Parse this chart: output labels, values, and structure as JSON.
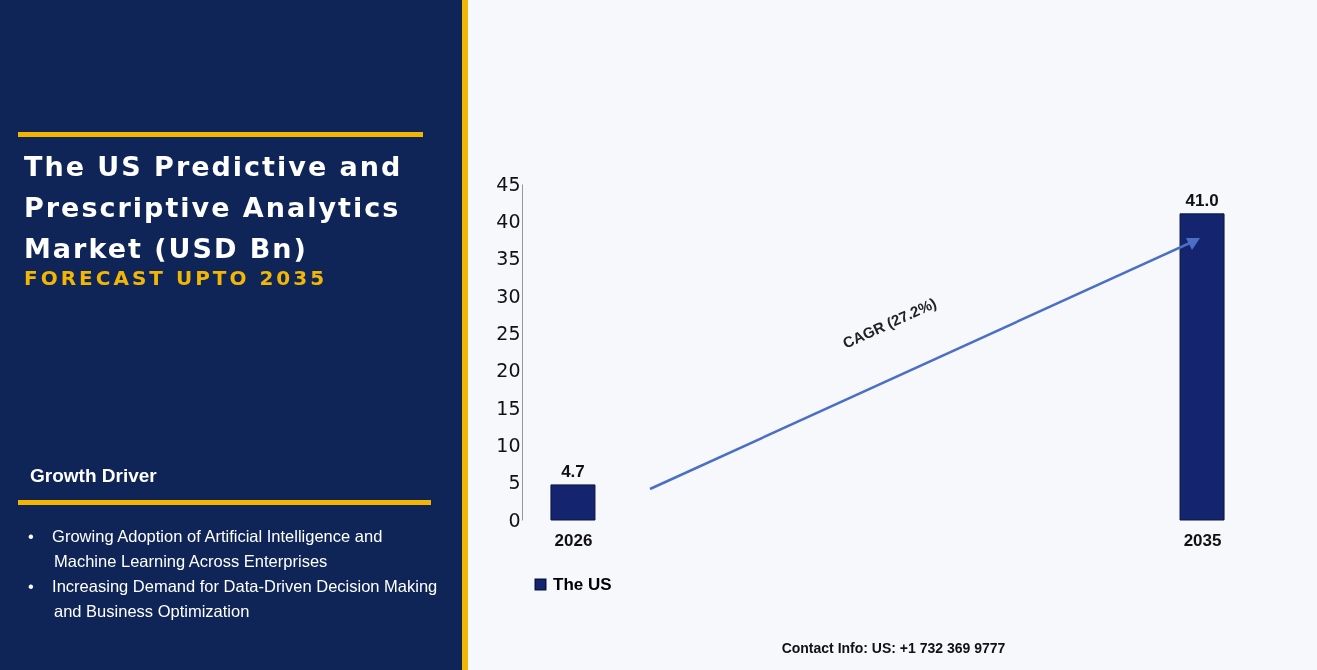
{
  "chart_data": {
    "type": "bar",
    "title": "The US Predictive and Prescriptive Analytics Market (USD Bn)",
    "subtitle": "FORECAST UPTO 2035",
    "categories": [
      "2026",
      "2035"
    ],
    "series": [
      {
        "name": "The US",
        "color": "#14246e",
        "values": [
          4.7,
          41.0
        ],
        "value_labels": [
          "4.7",
          "41.0"
        ]
      }
    ],
    "ylim": [
      0,
      45
    ],
    "yticks": [
      0,
      5,
      10,
      15,
      20,
      25,
      30,
      35,
      40,
      45
    ],
    "grid": false,
    "legend": "bottom",
    "annotations": [
      "CAGR (27.2%)",
      "Growth Driver",
      "• Growing Adoption of Artificial Intelligence and Machine Learning Across Enterprises",
      "• Increasing Demand for Data-Driven Decision Making and Business Optimization",
      "Contact Info: US: +1 732 369 9777"
    ]
  }
}
